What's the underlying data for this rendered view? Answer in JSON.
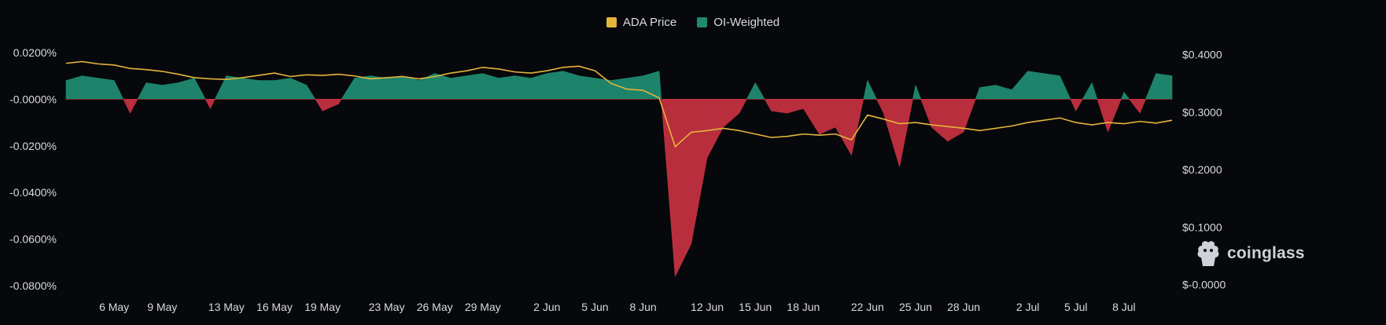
{
  "legend": {
    "price_label": "ADA Price",
    "funding_label": "OI-Weighted"
  },
  "watermark": {
    "text": "coinglass"
  },
  "colors": {
    "price": "#e4b43c",
    "positive": "#1f8a70",
    "negative": "#c23040",
    "background": "#07080b",
    "tick_text": "#d8dadf"
  },
  "chart_data": {
    "type": "area",
    "x_ticks": [
      "6 May",
      "9 May",
      "13 May",
      "16 May",
      "19 May",
      "23 May",
      "26 May",
      "29 May",
      "2 Jun",
      "5 Jun",
      "8 Jun",
      "12 Jun",
      "15 Jun",
      "18 Jun",
      "22 Jun",
      "25 Jun",
      "28 Jun",
      "2 Jul",
      "5 Jul",
      "8 Jul"
    ],
    "x_tick_index": [
      3,
      6,
      10,
      13,
      16,
      20,
      23,
      26,
      30,
      33,
      36,
      40,
      43,
      46,
      50,
      53,
      56,
      60,
      63,
      66
    ],
    "x_range_index": [
      0,
      69
    ],
    "y_left": {
      "ticks": [
        "0.0200%",
        "-0.0000%",
        "-0.0200%",
        "-0.0400%",
        "-0.0600%",
        "-0.0800%"
      ],
      "tick_values": [
        0.02,
        0,
        -0.02,
        -0.04,
        -0.06,
        -0.08
      ],
      "range": [
        -0.082,
        0.024
      ]
    },
    "y_right": {
      "ticks": [
        "$0.4000",
        "$0.3000",
        "$0.2000",
        "$0.1000",
        "$-0.0000"
      ],
      "tick_values": [
        0.4,
        0.3,
        0.2,
        0.1,
        0.0
      ],
      "range": [
        -0.01,
        0.42
      ]
    },
    "series": [
      {
        "name": "OI-Weighted",
        "axis": "left",
        "values": [
          0.008,
          0.01,
          0.009,
          0.008,
          -0.006,
          0.007,
          0.006,
          0.007,
          0.009,
          -0.004,
          0.01,
          0.009,
          0.008,
          0.008,
          0.009,
          0.006,
          -0.005,
          -0.002,
          0.009,
          0.01,
          0.009,
          0.01,
          0.008,
          0.011,
          0.009,
          0.01,
          0.011,
          0.009,
          0.01,
          0.009,
          0.011,
          0.012,
          0.01,
          0.009,
          0.008,
          0.009,
          0.01,
          0.012,
          -0.076,
          -0.062,
          -0.025,
          -0.012,
          -0.006,
          0.007,
          -0.005,
          -0.006,
          -0.004,
          -0.015,
          -0.012,
          -0.024,
          0.008,
          -0.006,
          -0.029,
          0.006,
          -0.012,
          -0.018,
          -0.014,
          0.005,
          0.006,
          0.004,
          0.012,
          0.011,
          0.01,
          -0.005,
          0.007,
          -0.014,
          0.003,
          -0.006,
          0.011,
          0.01
        ]
      },
      {
        "name": "ADA Price",
        "axis": "right",
        "values": [
          0.385,
          0.388,
          0.384,
          0.382,
          0.376,
          0.374,
          0.371,
          0.366,
          0.36,
          0.358,
          0.357,
          0.36,
          0.364,
          0.368,
          0.362,
          0.365,
          0.364,
          0.366,
          0.363,
          0.358,
          0.36,
          0.362,
          0.358,
          0.362,
          0.368,
          0.372,
          0.378,
          0.375,
          0.37,
          0.368,
          0.372,
          0.378,
          0.38,
          0.372,
          0.35,
          0.34,
          0.338,
          0.325,
          0.24,
          0.265,
          0.268,
          0.272,
          0.268,
          0.262,
          0.256,
          0.258,
          0.262,
          0.26,
          0.262,
          0.252,
          0.295,
          0.288,
          0.28,
          0.282,
          0.278,
          0.275,
          0.272,
          0.268,
          0.272,
          0.276,
          0.282,
          0.286,
          0.29,
          0.282,
          0.278,
          0.282,
          0.28,
          0.284,
          0.281,
          0.286
        ]
      }
    ]
  }
}
